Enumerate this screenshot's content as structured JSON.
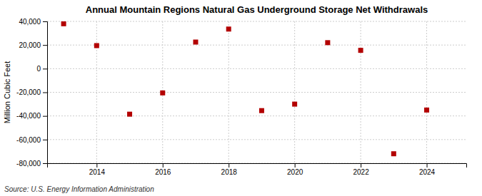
{
  "chart_data": {
    "type": "scatter",
    "title": "Annual Mountain Regions Natural Gas Underground Storage Net Withdrawals",
    "ylabel": "Million Cubic Feet",
    "source": "Source: U.S. Energy Information Administration",
    "x": [
      2013,
      2014,
      2015,
      2016,
      2017,
      2018,
      2019,
      2020,
      2021,
      2022,
      2023,
      2024
    ],
    "values": [
      38000,
      19500,
      -38500,
      -20500,
      22500,
      33500,
      -35500,
      -30000,
      22000,
      15500,
      -72000,
      -35000
    ],
    "color": "#b30000",
    "marker": "square",
    "xlim": [
      2012.5,
      2025.2
    ],
    "xticks": [
      2014,
      2016,
      2018,
      2020,
      2022,
      2024
    ],
    "ylim": [
      -80000,
      40000
    ],
    "yticks": [
      {
        "value": -80000,
        "label": "-80,000"
      },
      {
        "value": -60000,
        "label": "-60,000"
      },
      {
        "value": -40000,
        "label": "-40,000"
      },
      {
        "value": -20000,
        "label": "-20,000"
      },
      0,
      {
        "value": 20000,
        "label": "20,000"
      },
      {
        "value": 40000,
        "label": "40,000"
      }
    ],
    "grid": true
  }
}
